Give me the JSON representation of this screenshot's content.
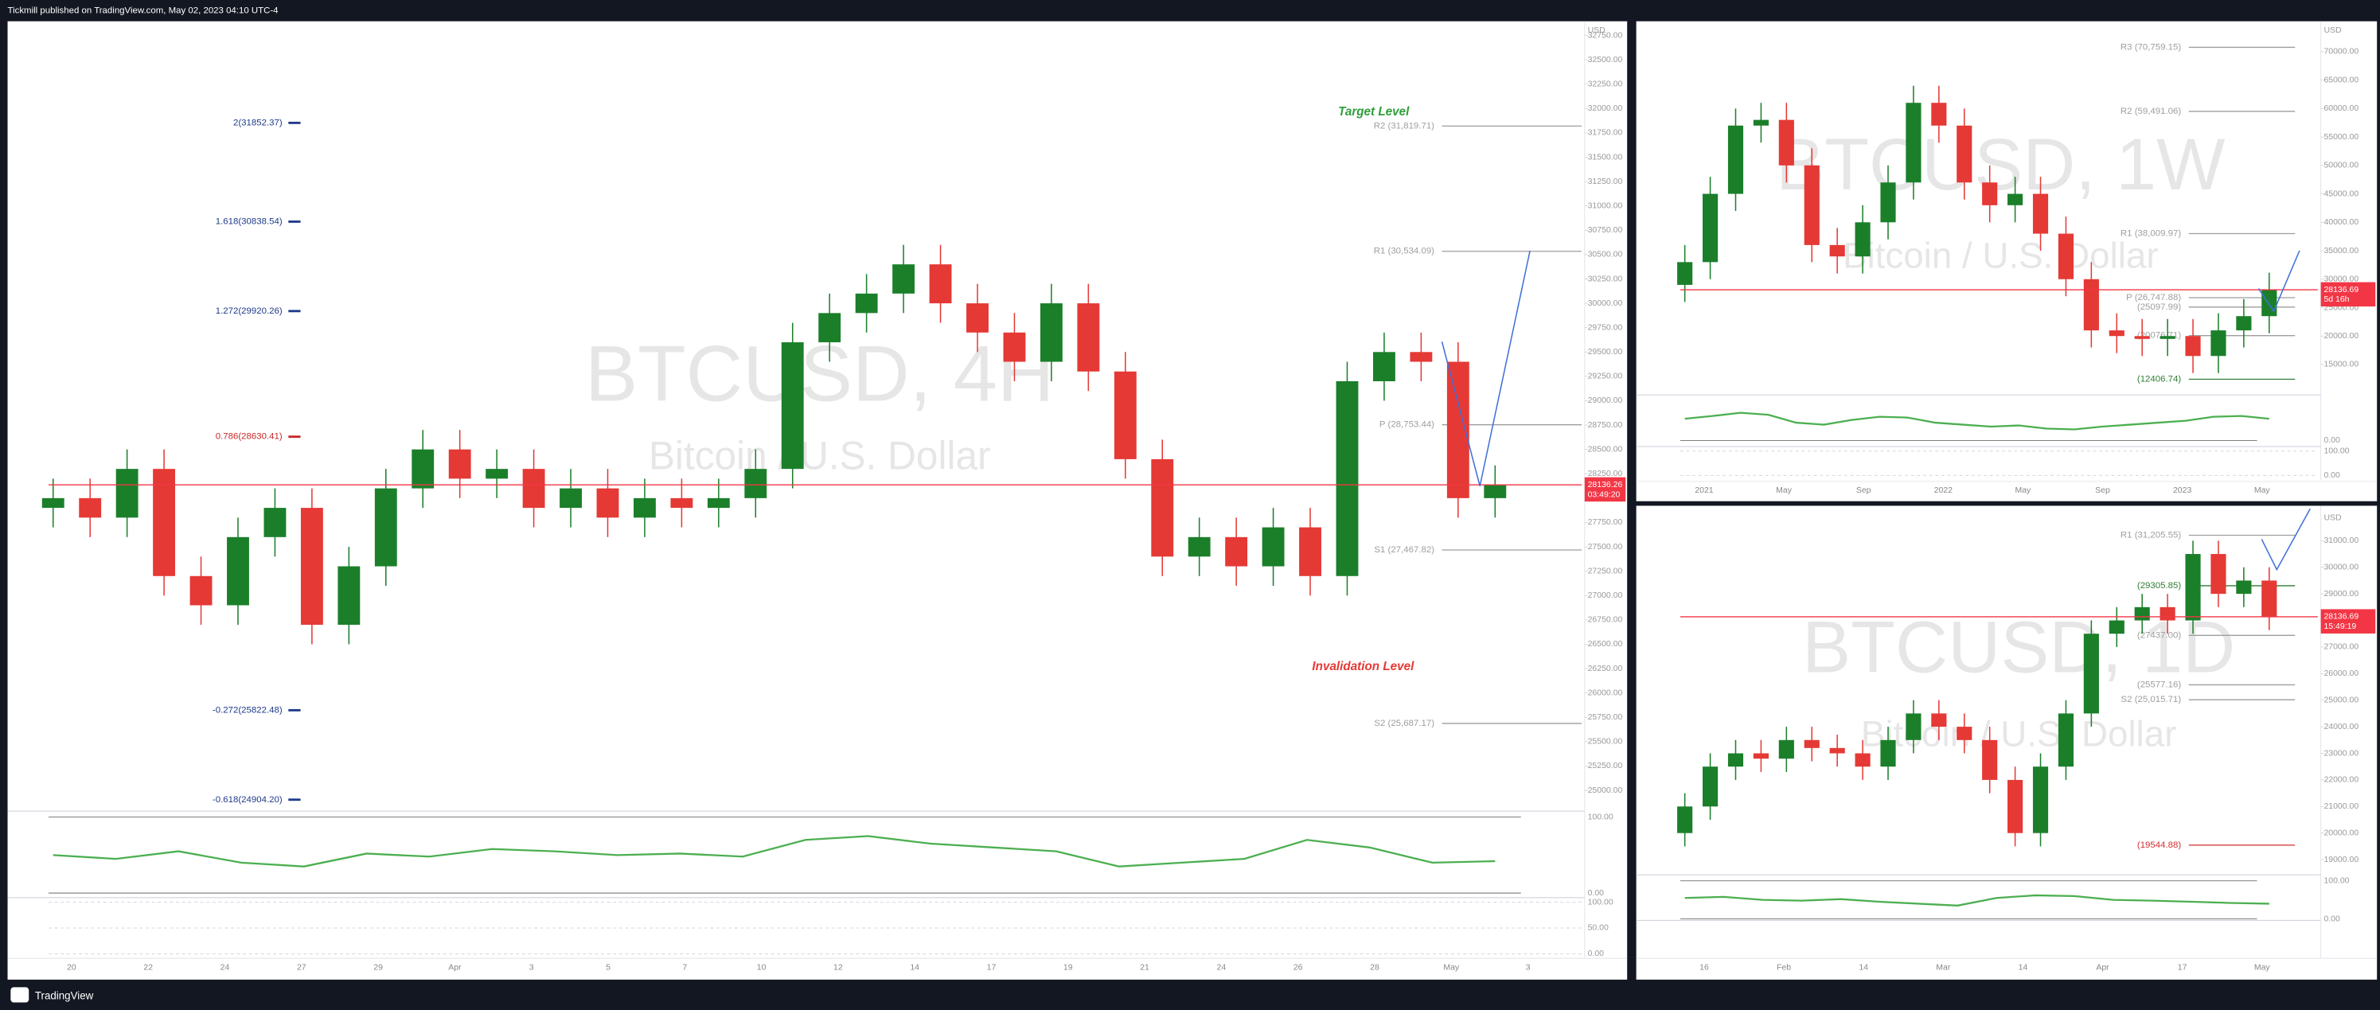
{
  "header": {
    "text": "Tickmill published on TradingView.com, May 02, 2023 04:10 UTC-4"
  },
  "footer": {
    "brand": "TradingView"
  },
  "chart_data": [
    {
      "type": "candlestick",
      "watermark": "BTCUSD, 4H",
      "watermark_subtitle": "Bitcoin / U.S. Dollar",
      "currency": "USD",
      "up_color": "#1b7f2a",
      "down_color": "#e53935",
      "ylim": [
        24850,
        32880
      ],
      "yticks": [
        {
          "value": 25000,
          "label": "25000.00"
        },
        {
          "value": 25250,
          "label": "25250.00"
        },
        {
          "value": 25500,
          "label": "25500.00"
        },
        {
          "value": 25750,
          "label": "25750.00"
        },
        {
          "value": 26000,
          "label": "26000.00"
        },
        {
          "value": 26250,
          "label": "26250.00"
        },
        {
          "value": 26500,
          "label": "26500.00"
        },
        {
          "value": 26750,
          "label": "26750.00"
        },
        {
          "value": 27000,
          "label": "27000.00"
        },
        {
          "value": 27250,
          "label": "27250.00"
        },
        {
          "value": 27500,
          "label": "27500.00"
        },
        {
          "value": 27750,
          "label": "27750.00"
        },
        {
          "value": 28000,
          "label": "28000.00"
        },
        {
          "value": 28250,
          "label": "28250.00"
        },
        {
          "value": 28500,
          "label": "28500.00"
        },
        {
          "value": 28750,
          "label": "28750.00"
        },
        {
          "value": 29000,
          "label": "29000.00"
        },
        {
          "value": 29250,
          "label": "29250.00"
        },
        {
          "value": 29500,
          "label": "29500.00"
        },
        {
          "value": 29750,
          "label": "29750.00"
        },
        {
          "value": 30000,
          "label": "30000.00"
        },
        {
          "value": 30250,
          "label": "30250.00"
        },
        {
          "value": 30500,
          "label": "30500.00"
        },
        {
          "value": 30750,
          "label": "30750.00"
        },
        {
          "value": 31000,
          "label": "31000.00"
        },
        {
          "value": 31250,
          "label": "31250.00"
        },
        {
          "value": 31500,
          "label": "31500.00"
        },
        {
          "value": 31750,
          "label": "31750.00"
        },
        {
          "value": 32000,
          "label": "32000.00"
        },
        {
          "value": 32250,
          "label": "32250.00"
        },
        {
          "value": 32500,
          "label": "32500.00"
        },
        {
          "value": 32750,
          "label": "32750.00"
        }
      ],
      "xtick_labels": [
        "20",
        "22",
        "24",
        "27",
        "29",
        "Apr",
        "3",
        "5",
        "7",
        "10",
        "12",
        "14",
        "17",
        "19",
        "21",
        "24",
        "26",
        "28",
        "May",
        "3"
      ],
      "candles": {
        "open": [
          27900,
          28000,
          27800,
          28300,
          27200,
          26900,
          27600,
          27900,
          26700,
          27300,
          28100,
          28500,
          28200,
          28300,
          27900,
          28100,
          27800,
          28000,
          27900,
          28000,
          28300,
          29600,
          29900,
          30100,
          30400,
          30000,
          29700,
          29400,
          30000,
          29300,
          28400,
          27400,
          27600,
          27300,
          27700,
          27200,
          29200,
          29500,
          29400,
          28000
        ],
        "high": [
          28200,
          28200,
          28500,
          28500,
          27400,
          27800,
          28100,
          28100,
          27500,
          28300,
          28700,
          28700,
          28500,
          28500,
          28300,
          28300,
          28200,
          28200,
          28200,
          28500,
          29800,
          30100,
          30300,
          30600,
          30600,
          30200,
          29900,
          30200,
          30200,
          29500,
          28600,
          27800,
          27800,
          27900,
          27900,
          29400,
          29700,
          29700,
          29600,
          28336
        ],
        "low": [
          27700,
          27600,
          27600,
          27000,
          26700,
          26700,
          27400,
          26500,
          26500,
          27100,
          27900,
          28000,
          28000,
          27700,
          27700,
          27600,
          27600,
          27700,
          27700,
          27800,
          28100,
          29400,
          29700,
          29900,
          29800,
          29500,
          29200,
          29200,
          29100,
          28200,
          27200,
          27200,
          27100,
          27100,
          27000,
          27000,
          29000,
          29200,
          27800,
          27800
        ],
        "close": [
          28000,
          27800,
          28300,
          27200,
          26900,
          27600,
          27900,
          26700,
          27300,
          28100,
          28500,
          28200,
          28300,
          27900,
          28100,
          27800,
          28000,
          27900,
          28000,
          28300,
          29600,
          29900,
          30100,
          30400,
          30000,
          29700,
          29400,
          30000,
          29300,
          28400,
          27400,
          27600,
          27300,
          27700,
          27200,
          29200,
          29500,
          29400,
          28000,
          28136
        ]
      },
      "fib_levels": [
        {
          "label": "2(31852.37)",
          "value": 31852.37,
          "color": "#1e3a8a"
        },
        {
          "label": "1.618(30838.54)",
          "value": 30838.54,
          "color": "#1e3a8a"
        },
        {
          "label": "1.272(29920.26)",
          "value": 29920.26,
          "color": "#1e3a8a"
        },
        {
          "label": "0.786(28630.41)",
          "value": 28630.41,
          "color": "#c62828"
        },
        {
          "label": "-0.272(25822.48)",
          "value": 25822.48,
          "color": "#1e3a8a"
        },
        {
          "label": "-0.618(24904.20)",
          "value": 24904.2,
          "color": "#1e3a8a"
        }
      ],
      "levels": [
        {
          "label": "R2 (31,819.71)",
          "value": 31819.71,
          "color": "#9e9e9e"
        },
        {
          "label": "R1 (30,534.09)",
          "value": 30534.09,
          "color": "#9e9e9e"
        },
        {
          "label": "P (28,753.44)",
          "value": 28753.44,
          "color": "#9e9e9e"
        },
        {
          "label": "S1 (27,467.82)",
          "value": 27467.82,
          "color": "#9e9e9e"
        },
        {
          "label": "S2 (25,687.17)",
          "value": 25687.17,
          "color": "#9e9e9e"
        }
      ],
      "annotations": [
        {
          "text": "Target Level",
          "color": "#2e9e3a"
        },
        {
          "text": "Invalidation Level",
          "color": "#e53935"
        }
      ],
      "last_price": 28136.26,
      "countdown": "03:49:20",
      "last_price_color": "#f23645",
      "rsi": {
        "values": [
          50,
          45,
          55,
          40,
          35,
          52,
          48,
          58,
          55,
          50,
          52,
          48,
          70,
          75,
          65,
          60,
          55,
          35,
          40,
          45,
          70,
          60,
          40,
          42
        ],
        "color": "#4caf50",
        "ylim": [
          0,
          100
        ],
        "yticks": [
          {
            "value": 100,
            "label": "100.00"
          },
          {
            "value": 0,
            "label": "0.00"
          }
        ]
      },
      "stoch": {
        "ylim": [
          0,
          100
        ],
        "yticks": [
          {
            "value": 100,
            "label": "100.00"
          },
          {
            "value": 50,
            "label": "50.00"
          },
          {
            "value": 0,
            "label": "0.00"
          }
        ]
      }
    },
    {
      "type": "candlestick",
      "watermark": "BTCUSD, 1W",
      "watermark_subtitle": "Bitcoin / U.S. Dollar",
      "currency": "USD",
      "up_color": "#1b7f2a",
      "down_color": "#e53935",
      "ylim": [
        9660,
        75070
      ],
      "yticks": [
        {
          "value": 15000,
          "label": "15000.00"
        },
        {
          "value": 20000,
          "label": "20000.00"
        },
        {
          "value": 25000,
          "label": "25000.00"
        },
        {
          "value": 30000,
          "label": "30000.00"
        },
        {
          "value": 35000,
          "label": "35000.00"
        },
        {
          "value": 40000,
          "label": "40000.00"
        },
        {
          "value": 45000,
          "label": "45000.00"
        },
        {
          "value": 50000,
          "label": "50000.00"
        },
        {
          "value": 55000,
          "label": "55000.00"
        },
        {
          "value": 60000,
          "label": "60000.00"
        },
        {
          "value": 65000,
          "label": "65000.00"
        },
        {
          "value": 70000,
          "label": "70000.00"
        }
      ],
      "xtick_labels": [
        "2021",
        "May",
        "Sep",
        "2022",
        "May",
        "Sep",
        "2023",
        "May"
      ],
      "candles": {
        "open": [
          29000,
          33000,
          45000,
          57000,
          58000,
          50000,
          36000,
          34000,
          40000,
          47000,
          61000,
          57000,
          47000,
          43000,
          45000,
          38000,
          30000,
          21000,
          20000,
          19500,
          20000,
          16500,
          21000,
          23500
        ],
        "high": [
          36000,
          48000,
          60000,
          61000,
          61000,
          53000,
          39000,
          43000,
          50000,
          64000,
          64000,
          60000,
          50000,
          48000,
          48000,
          41000,
          33000,
          24000,
          23000,
          23000,
          23000,
          24000,
          26500,
          31136
        ],
        "low": [
          26000,
          30000,
          42000,
          54000,
          47000,
          33000,
          31000,
          31000,
          37000,
          44000,
          54000,
          44000,
          40000,
          40000,
          35000,
          27000,
          18000,
          17000,
          16500,
          16500,
          13500,
          13500,
          18000,
          20500
        ],
        "close": [
          33000,
          45000,
          57000,
          58000,
          50000,
          36000,
          34000,
          40000,
          47000,
          61000,
          57000,
          47000,
          43000,
          45000,
          38000,
          30000,
          21000,
          20000,
          19500,
          20000,
          16500,
          21000,
          23500,
          28136
        ]
      },
      "levels": [
        {
          "label": "R3 (70,759.15)",
          "value": 70759.15,
          "color": "#9e9e9e"
        },
        {
          "label": "R2 (59,491.06)",
          "value": 59491.06,
          "color": "#9e9e9e"
        },
        {
          "label": "R1 (38,009.97)",
          "value": 38009.97,
          "color": "#9e9e9e"
        },
        {
          "label": "P (26,747.88)",
          "value": 26747.88,
          "color": "#9e9e9e"
        },
        {
          "label": "(25097.99)",
          "value": 25097.99,
          "color": "#9e9e9e"
        },
        {
          "label": "(20076.71)",
          "value": 20076.71,
          "color": "#9e9e9e"
        },
        {
          "label": "(12406.74)",
          "value": 12406.74,
          "color": "#2e7d32"
        }
      ],
      "last_price": 28136.69,
      "countdown": "5d 16h",
      "last_price_color": "#f23645",
      "rsi": {
        "values": [
          55,
          62,
          70,
          65,
          45,
          40,
          52,
          60,
          58,
          45,
          40,
          35,
          38,
          30,
          28,
          35,
          40,
          45,
          50,
          60,
          62,
          55
        ],
        "color": "#4caf50",
        "ylim": [
          0,
          100
        ],
        "yticks": [
          {
            "value": 0,
            "label": "0.00"
          }
        ]
      },
      "stoch": {
        "ylim": [
          0,
          100
        ],
        "yticks": [
          {
            "value": 100,
            "label": "100.00"
          },
          {
            "value": 0,
            "label": "0.00"
          }
        ]
      }
    },
    {
      "type": "candlestick",
      "watermark": "BTCUSD, 1D",
      "watermark_subtitle": "Bitcoin / U.S. Dollar",
      "currency": "USD",
      "up_color": "#1b7f2a",
      "down_color": "#e53935",
      "ylim": [
        18486,
        32143
      ],
      "yticks": [
        {
          "value": 19000,
          "label": "19000.00"
        },
        {
          "value": 20000,
          "label": "20000.00"
        },
        {
          "value": 21000,
          "label": "21000.00"
        },
        {
          "value": 22000,
          "label": "22000.00"
        },
        {
          "value": 23000,
          "label": "23000.00"
        },
        {
          "value": 24000,
          "label": "24000.00"
        },
        {
          "value": 25000,
          "label": "25000.00"
        },
        {
          "value": 26000,
          "label": "26000.00"
        },
        {
          "value": 27000,
          "label": "27000.00"
        },
        {
          "value": 28000,
          "label": "28000.00"
        },
        {
          "value": 29000,
          "label": "29000.00"
        },
        {
          "value": 30000,
          "label": "30000.00"
        },
        {
          "value": 31000,
          "label": "31000.00"
        }
      ],
      "xtick_labels": [
        "16",
        "Feb",
        "14",
        "Mar",
        "14",
        "Apr",
        "17",
        "May"
      ],
      "candles": {
        "open": [
          20000,
          21000,
          22500,
          23000,
          22800,
          23500,
          23200,
          23000,
          22500,
          23500,
          24500,
          24000,
          23500,
          22000,
          20000,
          22500,
          24500,
          27500,
          28000,
          28500,
          28000,
          30500,
          29000,
          29500
        ],
        "high": [
          21500,
          23000,
          23500,
          23500,
          24000,
          24000,
          23700,
          23500,
          24000,
          25000,
          25000,
          24500,
          24000,
          22500,
          23000,
          25000,
          28000,
          28500,
          29000,
          29000,
          31000,
          31000,
          30000,
          30000
        ],
        "low": [
          19500,
          20500,
          22000,
          22300,
          22300,
          22700,
          22500,
          22000,
          22000,
          23000,
          23500,
          23000,
          21500,
          19500,
          19500,
          22000,
          24000,
          27000,
          27500,
          27500,
          27500,
          28500,
          28500,
          27636
        ],
        "close": [
          21000,
          22500,
          23000,
          22800,
          23500,
          23200,
          23000,
          22500,
          23500,
          24500,
          24000,
          23500,
          22000,
          20000,
          22500,
          24500,
          27500,
          28000,
          28500,
          28000,
          30500,
          29000,
          29500,
          28136
        ]
      },
      "levels": [
        {
          "label": "R1 (31,205.55)",
          "value": 31205.55,
          "color": "#9e9e9e"
        },
        {
          "label": "(29305.85)",
          "value": 29305.85,
          "color": "#2e7d32"
        },
        {
          "label": "(27437.00)",
          "value": 27437,
          "color": "#9e9e9e"
        },
        {
          "label": "(25577.16)",
          "value": 25577.16,
          "color": "#9e9e9e"
        },
        {
          "label": "S2 (25,015.71)",
          "value": 25015.71,
          "color": "#9e9e9e"
        },
        {
          "label": "(19544.88)",
          "value": 19544.88,
          "color": "#d32f2f"
        }
      ],
      "last_price": 28136.69,
      "countdown": "15:49:19",
      "last_price_color": "#f23645",
      "rsi": {
        "values": [
          55,
          58,
          50,
          48,
          52,
          45,
          40,
          35,
          55,
          62,
          60,
          50,
          48,
          45,
          42,
          40
        ],
        "color": "#4caf50",
        "ylim": [
          0,
          100
        ],
        "yticks": [
          {
            "value": 0,
            "label": "0.00"
          },
          {
            "value": 100,
            "label": "100.00"
          }
        ]
      },
      "stoch": {
        "ylim": [
          0,
          100
        ],
        "yticks": []
      }
    }
  ]
}
